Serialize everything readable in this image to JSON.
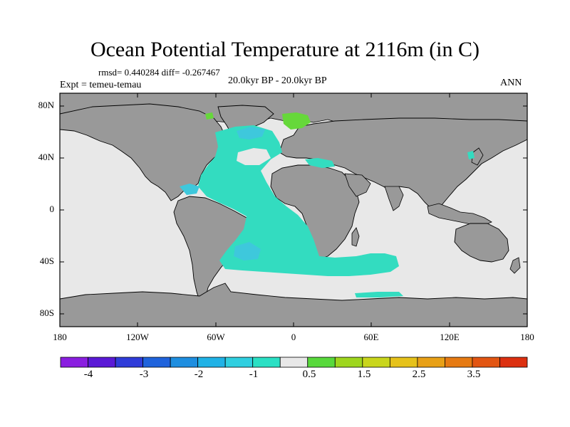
{
  "title": "Ocean Potential Temperature at 2116m (in C)",
  "stats": "rmsd= 0.440284  diff= -0.267467",
  "experiment": "Expt = temeu-temau",
  "period": "20.0kyr BP - 20.0kyr BP",
  "season": "ANN",
  "y_axis": {
    "ticks": [
      "80N",
      "40N",
      "0",
      "40S",
      "80S"
    ],
    "values": [
      80,
      40,
      0,
      -40,
      -80
    ],
    "range": [
      -90,
      90
    ]
  },
  "x_axis": {
    "ticks": [
      "180",
      "120W",
      "60W",
      "0",
      "60E",
      "120E",
      "180"
    ],
    "values": [
      -180,
      -120,
      -60,
      0,
      60,
      120,
      180
    ],
    "range": [
      -180,
      180
    ]
  },
  "colorbar": {
    "labels": [
      "-4",
      "-3",
      "-2",
      "-1",
      "0.5",
      "1.5",
      "2.5",
      "3.5"
    ],
    "bins": [
      {
        "color": "#8a1ee0"
      },
      {
        "color": "#5a19d6"
      },
      {
        "color": "#2f3cd9"
      },
      {
        "color": "#1f63dc"
      },
      {
        "color": "#1e8ee0"
      },
      {
        "color": "#20b2e6"
      },
      {
        "color": "#2fcfe0"
      },
      {
        "color": "#2ae0c4"
      },
      {
        "color": "#e8e8e8"
      },
      {
        "color": "#58d93c"
      },
      {
        "color": "#9ed61e"
      },
      {
        "color": "#c9d61c"
      },
      {
        "color": "#e6c21a"
      },
      {
        "color": "#e8a016"
      },
      {
        "color": "#e67a12"
      },
      {
        "color": "#e25512"
      },
      {
        "color": "#dc3010"
      }
    ]
  },
  "colors": {
    "land": "#999999",
    "no_change": "#e8e8e8",
    "atlantic_main": "#33dcc0",
    "atlantic_cool": "#3ec8dc",
    "arctic_warm": "#66d83a"
  }
}
